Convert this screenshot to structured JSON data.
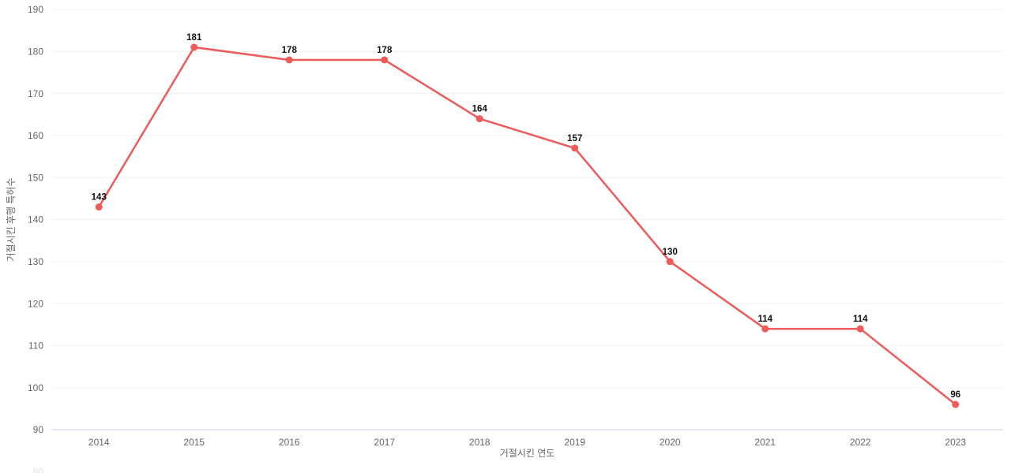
{
  "chart_data": {
    "type": "line",
    "title": "",
    "xlabel": "거절시킨 연도",
    "ylabel": "거절시킨 후행 특허수",
    "categories": [
      2014,
      2015,
      2016,
      2017,
      2018,
      2019,
      2020,
      2021,
      2022,
      2023
    ],
    "series": [
      {
        "name": "거절시킨 후행 특허수",
        "values": [
          143,
          181,
          178,
          178,
          164,
          157,
          130,
          114,
          114,
          96
        ]
      }
    ],
    "ylim": [
      90,
      190
    ],
    "ytick_step": 10,
    "yticks": [
      90,
      100,
      110,
      120,
      130,
      140,
      150,
      160,
      170,
      180,
      190
    ],
    "clipped_bottom_ytick": 80,
    "grid": true,
    "legend": "none",
    "data_labels_visible": true,
    "colors": {
      "line": "#ee5a5a",
      "marker": "#ee5a5a",
      "data_label": "#111111",
      "axis_text": "#666666",
      "gridline": "#efefef",
      "baseline": "#ccd4e2",
      "background": "#ffffff"
    }
  }
}
